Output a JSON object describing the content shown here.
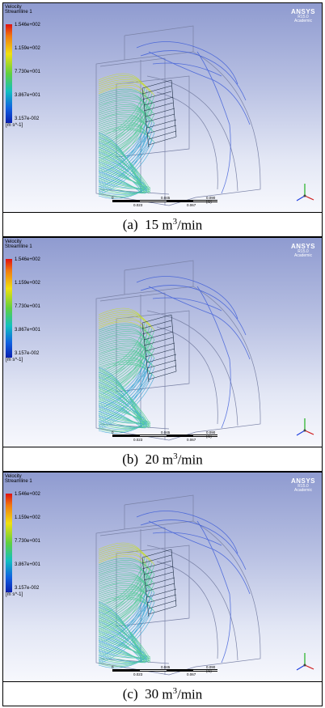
{
  "figure": {
    "legend": {
      "variable": "Velocity",
      "object": "Streamline 1",
      "ticks": [
        "1.546e+002",
        "1.159e+002",
        "7.730e+001",
        "3.867e+001",
        "3.157e-002"
      ],
      "unit": "[m s^-1]"
    },
    "logo": {
      "brand": "ANSYS",
      "version": "R15.0",
      "edition": "Academic"
    },
    "scale": {
      "start": "0",
      "left": "0.023",
      "mid": "0.045",
      "right": "0.067",
      "end": "0.090 (m)"
    },
    "colors": {
      "streamline_main": "#3fc98a",
      "streamline_fast": "#c8e020",
      "streamline_slow": "#2aa0d0",
      "outline": "#8088a8"
    },
    "panels": [
      {
        "caption_label": "(a)",
        "flow_value": "15",
        "unit_base": "m",
        "unit_exp": "3",
        "unit_tail": "/min"
      },
      {
        "caption_label": "(b)",
        "flow_value": "20",
        "unit_base": "m",
        "unit_exp": "3",
        "unit_tail": "/min"
      },
      {
        "caption_label": "(c)",
        "flow_value": "30",
        "unit_base": "m",
        "unit_exp": "3",
        "unit_tail": "/min"
      }
    ]
  }
}
